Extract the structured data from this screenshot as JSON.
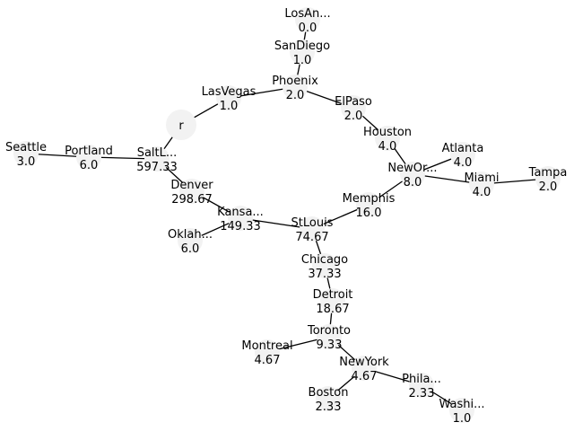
{
  "nodes": [
    {
      "id": "r",
      "name": "r",
      "value": ""
    },
    {
      "id": "LosAngeles",
      "name": "LosAn...",
      "value": "0.0"
    },
    {
      "id": "SanDiego",
      "name": "SanDiego",
      "value": "1.0"
    },
    {
      "id": "Phoenix",
      "name": "Phoenix",
      "value": "2.0"
    },
    {
      "id": "LasVegas",
      "name": "LasVegas",
      "value": "1.0"
    },
    {
      "id": "ElPaso",
      "name": "ElPaso",
      "value": "2.0"
    },
    {
      "id": "Houston",
      "name": "Houston",
      "value": "4.0"
    },
    {
      "id": "NewOrleans",
      "name": "NewOr...",
      "value": "8.0"
    },
    {
      "id": "Atlanta",
      "name": "Atlanta",
      "value": "4.0"
    },
    {
      "id": "Miami",
      "name": "Miami",
      "value": "4.0"
    },
    {
      "id": "Tampa",
      "name": "Tampa",
      "value": "2.0"
    },
    {
      "id": "Memphis",
      "name": "Memphis",
      "value": "16.0"
    },
    {
      "id": "StLouis",
      "name": "StLouis",
      "value": "74.67"
    },
    {
      "id": "KansasCity",
      "name": "Kansa...",
      "value": "149.33"
    },
    {
      "id": "Oklahoma",
      "name": "Oklah...",
      "value": "6.0"
    },
    {
      "id": "Denver",
      "name": "Denver",
      "value": "298.67"
    },
    {
      "id": "SaltLake",
      "name": "SaltL...",
      "value": "597.33"
    },
    {
      "id": "Portland",
      "name": "Portland",
      "value": "6.0"
    },
    {
      "id": "Seattle",
      "name": "Seattle",
      "value": "3.0"
    },
    {
      "id": "Chicago",
      "name": "Chicago",
      "value": "37.33"
    },
    {
      "id": "Detroit",
      "name": "Detroit",
      "value": "18.67"
    },
    {
      "id": "Toronto",
      "name": "Toronto",
      "value": "9.33"
    },
    {
      "id": "Montreal",
      "name": "Montreal",
      "value": "4.67"
    },
    {
      "id": "NewYork",
      "name": "NewYork",
      "value": "4.67"
    },
    {
      "id": "Boston",
      "name": "Boston",
      "value": "2.33"
    },
    {
      "id": "Philadelphia",
      "name": "Phila...",
      "value": "2.33"
    },
    {
      "id": "Washington",
      "name": "Washi...",
      "value": "1.0"
    }
  ],
  "edges": [
    [
      "LosAngeles",
      "SanDiego"
    ],
    [
      "SanDiego",
      "Phoenix"
    ],
    [
      "Phoenix",
      "LasVegas"
    ],
    [
      "Phoenix",
      "ElPaso"
    ],
    [
      "LasVegas",
      "r"
    ],
    [
      "ElPaso",
      "Houston"
    ],
    [
      "Houston",
      "NewOrleans"
    ],
    [
      "NewOrleans",
      "Atlanta"
    ],
    [
      "NewOrleans",
      "Miami"
    ],
    [
      "Miami",
      "Tampa"
    ],
    [
      "NewOrleans",
      "Memphis"
    ],
    [
      "Memphis",
      "StLouis"
    ],
    [
      "StLouis",
      "KansasCity"
    ],
    [
      "KansasCity",
      "Oklahoma"
    ],
    [
      "KansasCity",
      "Denver"
    ],
    [
      "Denver",
      "SaltLake"
    ],
    [
      "SaltLake",
      "r"
    ],
    [
      "SaltLake",
      "Portland"
    ],
    [
      "Portland",
      "Seattle"
    ],
    [
      "StLouis",
      "Chicago"
    ],
    [
      "Chicago",
      "Detroit"
    ],
    [
      "Detroit",
      "Toronto"
    ],
    [
      "Toronto",
      "Montreal"
    ],
    [
      "Toronto",
      "NewYork"
    ],
    [
      "NewYork",
      "Boston"
    ],
    [
      "NewYork",
      "Philadelphia"
    ],
    [
      "Philadelphia",
      "Washington"
    ]
  ]
}
